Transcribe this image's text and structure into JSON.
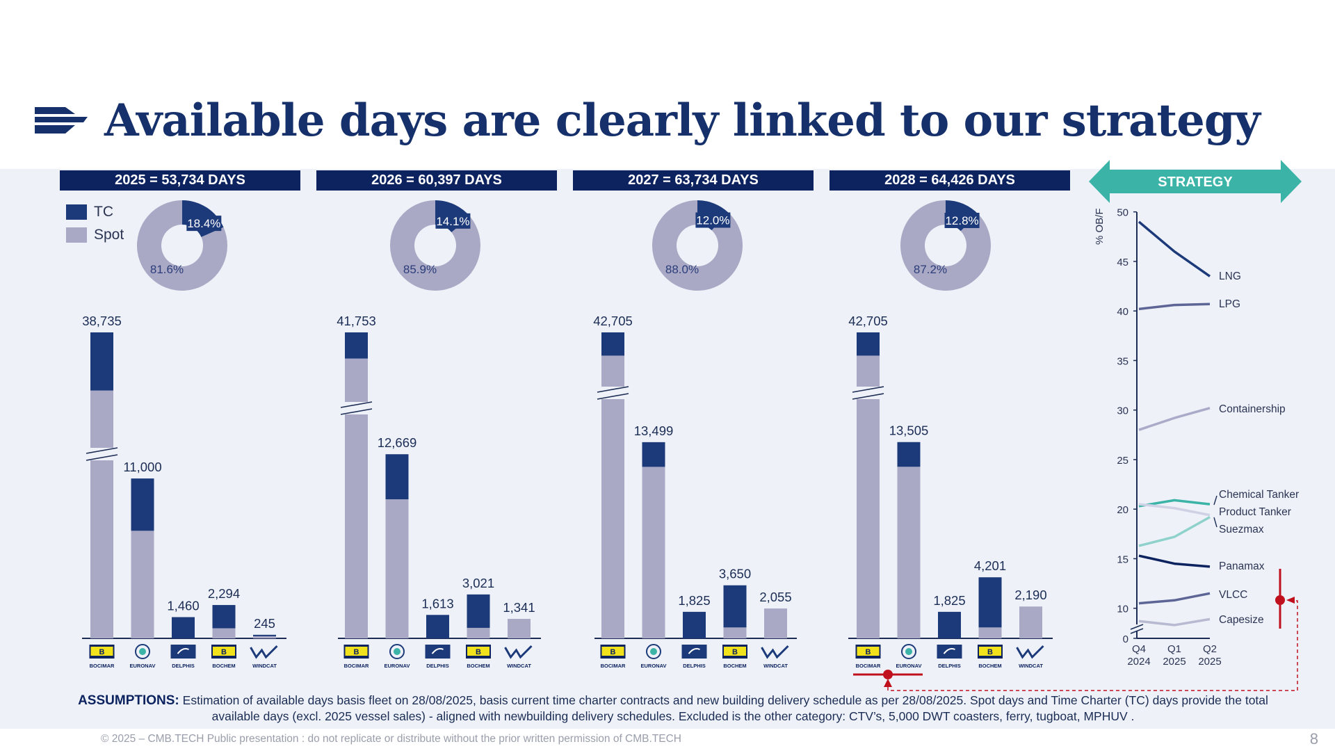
{
  "title": "Available days are clearly linked to our strategy",
  "headers": [
    "2025 = 53,734 DAYS",
    "2026 = 60,397 DAYS",
    "2027 = 63,734 DAYS",
    "2028 = 64,426 DAYS"
  ],
  "strategy_label": "STRATEGY",
  "legend": {
    "tc": "TC",
    "spot": "Spot"
  },
  "colors": {
    "tc": "#1c3a7a",
    "spot": "#aaa9c5",
    "teal": "#3bb3a7",
    "red": "#c0101e",
    "navy": "#0d2360"
  },
  "companies": [
    "BOCIMAR",
    "EURONAV",
    "DELPHIS",
    "BOCHEM",
    "WINDCAT"
  ],
  "company_logo_letters": {
    "bocimar": "B",
    "bochem": "B"
  },
  "chart_data": [
    {
      "type": "donut",
      "year": "2025",
      "tc_pct": 18.4,
      "spot_pct": 81.6,
      "labels": [
        "18.4%",
        "81.6%"
      ]
    },
    {
      "type": "donut",
      "year": "2026",
      "tc_pct": 14.1,
      "spot_pct": 85.9,
      "labels": [
        "14.1%",
        "85.9%"
      ]
    },
    {
      "type": "donut",
      "year": "2027",
      "tc_pct": 12.0,
      "spot_pct": 88.0,
      "labels": [
        "12.0%",
        "88.0%"
      ]
    },
    {
      "type": "donut",
      "year": "2028",
      "tc_pct": 12.8,
      "spot_pct": 87.2,
      "labels": [
        "12.8%",
        "87.2%"
      ]
    },
    {
      "type": "bar",
      "stacked": true,
      "year": "2025",
      "categories": [
        "BOCIMAR",
        "EURONAV",
        "DELPHIS",
        "BOCHEM",
        "WINDCAT"
      ],
      "totals": [
        38735,
        11000,
        1460,
        2294,
        245
      ],
      "labels": [
        "38,735",
        "11,000",
        "1,460",
        "2,294",
        "245"
      ],
      "tc": [
        4000,
        3600,
        1460,
        1600,
        100
      ],
      "spot": [
        34735,
        7400,
        0,
        694,
        145
      ],
      "axis_break": "BOCIMAR"
    },
    {
      "type": "bar",
      "stacked": true,
      "year": "2026",
      "categories": [
        "BOCIMAR",
        "EURONAV",
        "DELPHIS",
        "BOCHEM",
        "WINDCAT"
      ],
      "totals": [
        41753,
        12669,
        1613,
        3021,
        1341
      ],
      "labels": [
        "41,753",
        "12,669",
        "1,613",
        "3,021",
        "1,341"
      ],
      "tc": [
        1800,
        3100,
        1613,
        2300,
        0
      ],
      "spot": [
        39953,
        9569,
        0,
        721,
        1341
      ],
      "axis_break": "BOCIMAR"
    },
    {
      "type": "bar",
      "stacked": true,
      "year": "2027",
      "categories": [
        "BOCIMAR",
        "EURONAV",
        "DELPHIS",
        "BOCHEM",
        "WINDCAT"
      ],
      "totals": [
        42705,
        13499,
        1825,
        3650,
        2055
      ],
      "labels": [
        "42,705",
        "13,499",
        "1,825",
        "3,650",
        "2,055"
      ],
      "tc": [
        1600,
        1700,
        1825,
        2900,
        0
      ],
      "spot": [
        41105,
        11799,
        0,
        750,
        2055
      ],
      "axis_break": "BOCIMAR"
    },
    {
      "type": "bar",
      "stacked": true,
      "year": "2028",
      "categories": [
        "BOCIMAR",
        "EURONAV",
        "DELPHIS",
        "BOCHEM",
        "WINDCAT"
      ],
      "totals": [
        42705,
        13505,
        1825,
        4201,
        2190
      ],
      "labels": [
        "42,705",
        "13,505",
        "1,825",
        "4,201",
        "2,190"
      ],
      "tc": [
        1600,
        1700,
        1825,
        3450,
        0
      ],
      "spot": [
        41105,
        11805,
        0,
        751,
        2190
      ],
      "axis_break": "BOCIMAR"
    },
    {
      "type": "line",
      "ylabel": "% OB/F",
      "ylim": [
        0,
        50
      ],
      "yticks": [
        0,
        10,
        15,
        20,
        25,
        30,
        35,
        40,
        45,
        50
      ],
      "y_axis_break": true,
      "x": [
        "Q4 2024",
        "Q1 2025",
        "Q2 2025"
      ],
      "series": [
        {
          "name": "LNG",
          "values": [
            49,
            46,
            43.5
          ],
          "color": "#1c3a7a"
        },
        {
          "name": "LPG",
          "values": [
            40.2,
            40.6,
            40.7
          ],
          "color": "#5c6596"
        },
        {
          "name": "Containership",
          "values": [
            28,
            29.2,
            30.2
          ],
          "color": "#a9abc8"
        },
        {
          "name": "Chemical Tanker",
          "values": [
            20.3,
            20.9,
            20.5
          ],
          "color": "#3bb3a7"
        },
        {
          "name": "Product Tanker",
          "values": [
            20.5,
            20.1,
            19.4
          ],
          "color": "#cfd2e4"
        },
        {
          "name": "Suezmax",
          "values": [
            16.3,
            17.2,
            19.2
          ],
          "color": "#8fd1cb"
        },
        {
          "name": "Panamax",
          "values": [
            15.3,
            14.5,
            14.2
          ],
          "color": "#0d2360"
        },
        {
          "name": "VLCC",
          "values": [
            10.5,
            10.8,
            11.5
          ],
          "color": "#5c6596"
        },
        {
          "name": "Capesize",
          "values": [
            8.7,
            8.3,
            8.9
          ],
          "color": "#b8bad2"
        }
      ]
    }
  ],
  "assumptions": {
    "label": "ASSUMPTIONS:",
    "text": "Estimation of available days basis fleet on 28/08/2025, basis current time charter contracts and new building delivery schedule as per 28/08/2025. Spot days and Time Charter (TC) days provide the total available days (excl. 2025 vessel sales) - aligned with newbuilding delivery schedules.  Excluded is the other category: CTV’s, 5,000 DWT coasters, ferry, tugboat, MPHUV ."
  },
  "footer": "© 2025 – CMB.TECH Public presentation : do not replicate or distribute without the prior written permission of CMB.TECH",
  "page_number": "8"
}
